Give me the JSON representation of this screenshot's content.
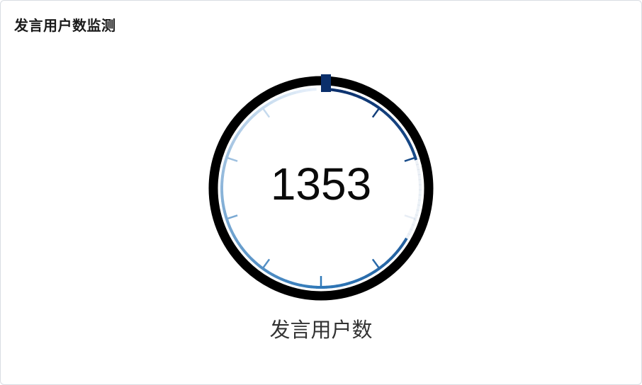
{
  "card": {
    "title": "发言用户数监测"
  },
  "gauge": {
    "value": "1353",
    "label": "发言用户数",
    "colors": {
      "ring": "#000000",
      "arc_start": "#0b2f6b",
      "arc_mid": "#2f78b8",
      "arc_end": "#eaf2fb",
      "pointer": "#0b2f6b"
    }
  }
}
